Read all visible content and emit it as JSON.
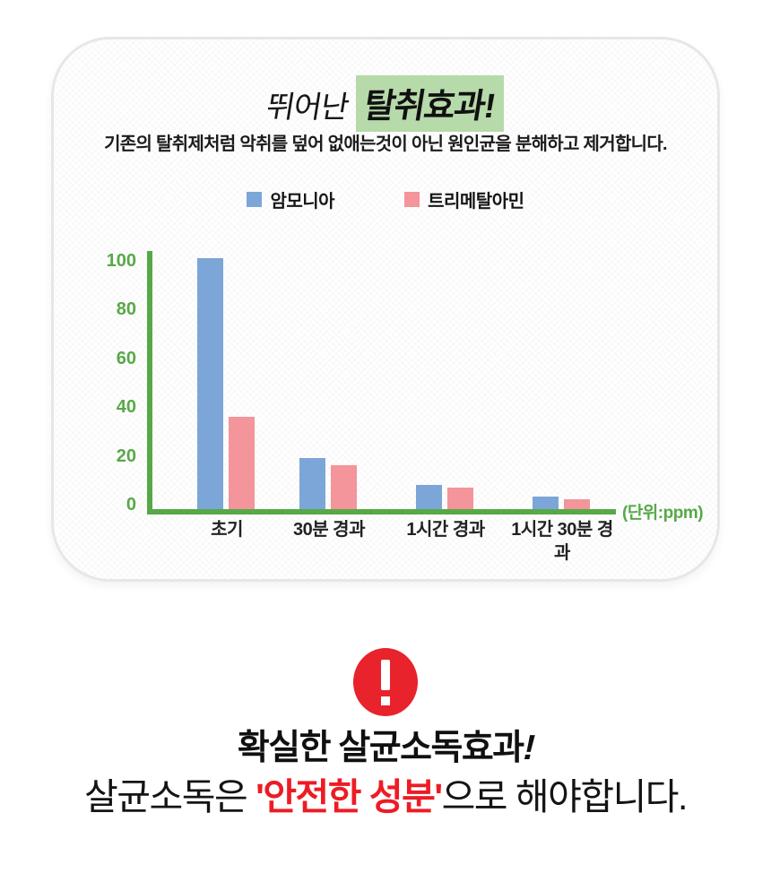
{
  "card": {
    "title": {
      "prefix": "뛰어난",
      "highlight": "탈취효과!"
    },
    "subtitle": "기존의 탈취제처럼 악취를 덮어 없애는것이 아닌 원인균을 분해하고 제거합니다."
  },
  "chart_data": {
    "type": "bar",
    "title": "뛰어난 탈취효과!",
    "categories": [
      "초기",
      "30분 경과",
      "1시간 경과",
      "1시간 30분 경과"
    ],
    "series": [
      {
        "name": "암모니아",
        "color": "#7ca6d8",
        "values": [
          103,
          21,
          10,
          5
        ]
      },
      {
        "name": "트리메탈아민",
        "color": "#f4949b",
        "values": [
          38,
          18,
          9,
          4
        ]
      }
    ],
    "xlabel": "",
    "ylabel": "",
    "ylim": [
      0,
      100
    ],
    "yticks": [
      0,
      20,
      40,
      60,
      80,
      100
    ],
    "unit": "(단위:ppm)",
    "grid": false,
    "legend_position": "top"
  },
  "footer": {
    "heading": "확실한 살균소독효과",
    "heading_bang": "!",
    "line2_prefix": "살균소독은 ",
    "line2_highlight": "'안전한 성분'",
    "line2_suffix": "으로 해야합니다."
  },
  "colors": {
    "axis_green": "#57a948",
    "title_highlight": "#b6daa9",
    "alert_red": "#e8232b",
    "emphasis_red": "#ed1c24",
    "ammonia_bar": "#7ca6d8",
    "trimethylamine_bar": "#f4949b"
  }
}
